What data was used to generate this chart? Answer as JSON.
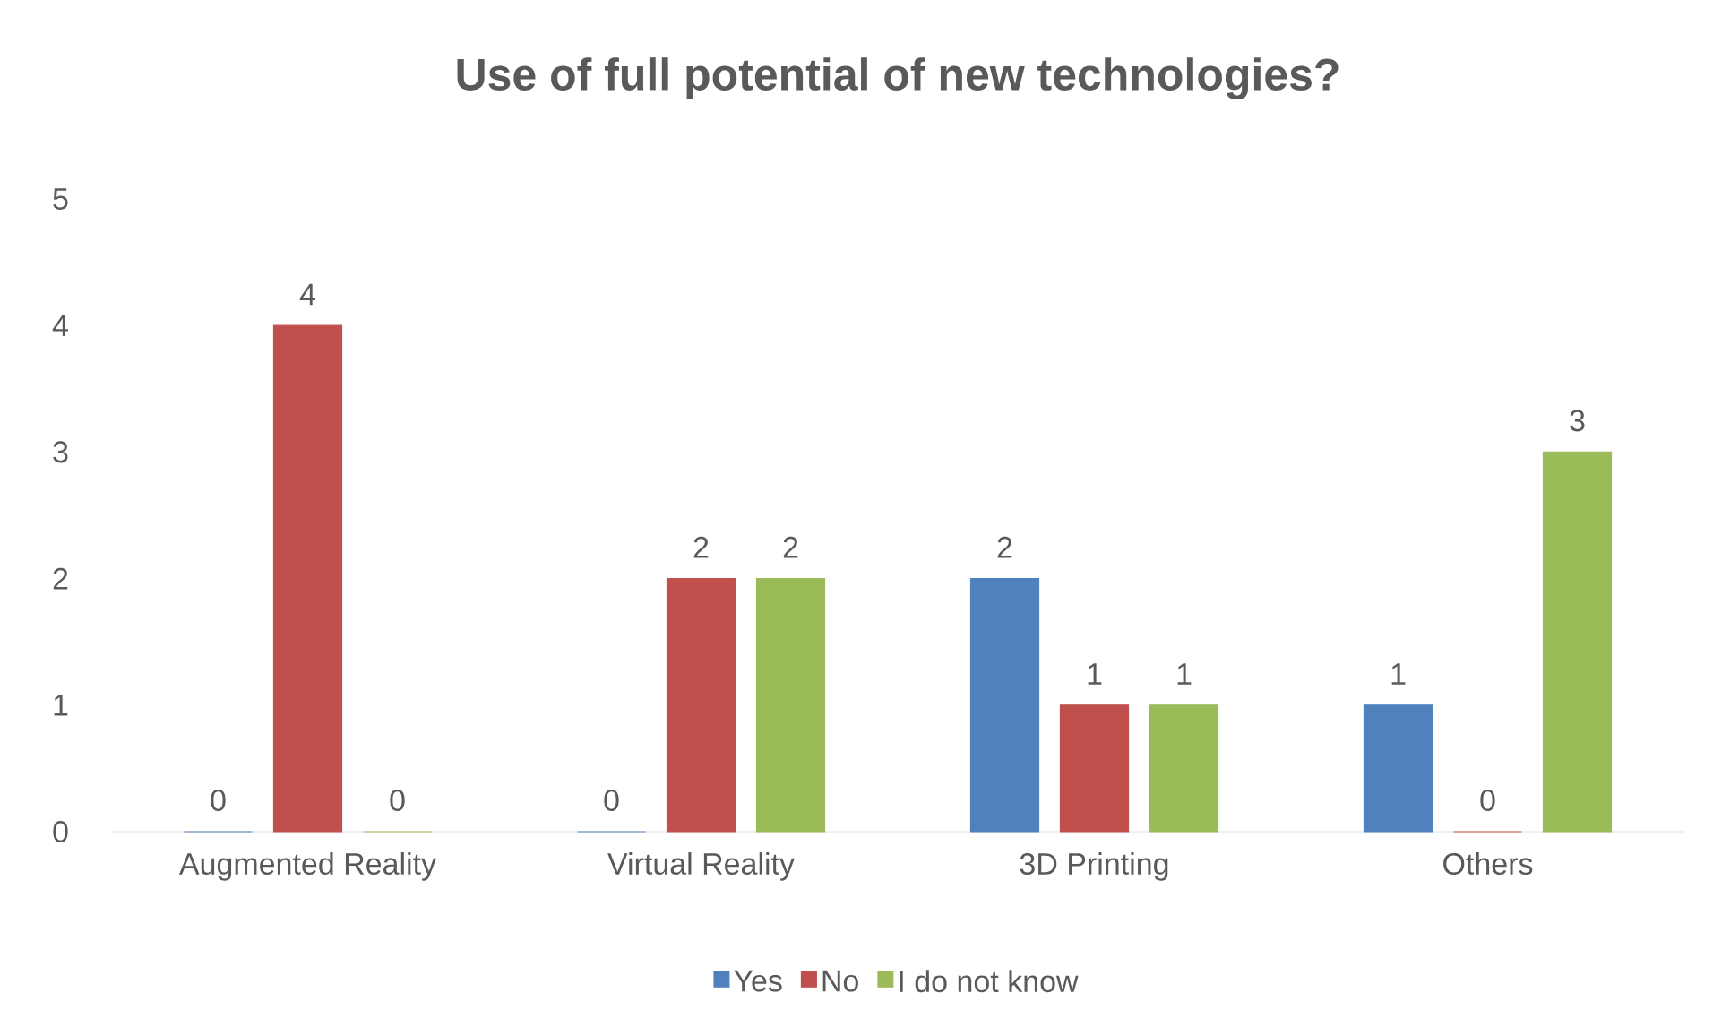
{
  "chart_data": {
    "type": "bar",
    "title": "Use of full potential of new technologies?",
    "categories": [
      "Augmented Reality",
      "Virtual Reality",
      "3D Printing",
      "Others"
    ],
    "series": [
      {
        "name": "Yes",
        "color": "#4f81bd",
        "values": [
          0,
          0,
          2,
          1
        ]
      },
      {
        "name": "No",
        "color": "#c0504d",
        "values": [
          4,
          2,
          1,
          0
        ]
      },
      {
        "name": "I do not know",
        "color": "#9bbb59",
        "values": [
          0,
          2,
          1,
          3
        ]
      }
    ],
    "ylim": [
      0,
      5
    ],
    "yticks": [
      0,
      1,
      2,
      3,
      4,
      5
    ],
    "data_labels": true,
    "legend": "bottom"
  }
}
